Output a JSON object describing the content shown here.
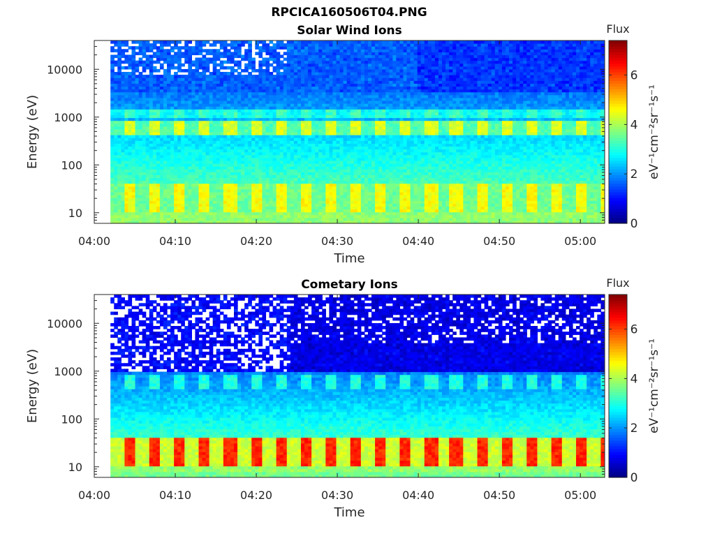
{
  "figure": {
    "file_title": "RPCICA160506T04.PNG"
  },
  "chart_data": [
    {
      "type": "heatmap",
      "title": "Solar Wind Ions",
      "xlabel": "Time",
      "ylabel": "Energy (eV)",
      "x_ticks": [
        "04:00",
        "04:10",
        "04:20",
        "04:30",
        "04:40",
        "04:50",
        "05:00"
      ],
      "y_ticks": [
        "10",
        "100",
        "1000",
        "10000"
      ],
      "y_scale": "log",
      "ylim": [
        6,
        40000
      ],
      "xlim": [
        "04:00",
        "05:03"
      ],
      "data_start": "04:02",
      "colorbar": {
        "title": "Flux",
        "label": "eV⁻¹cm⁻²sr⁻¹s⁻¹",
        "ticks": [
          "0",
          "2",
          "4",
          "6"
        ],
        "range": [
          0,
          7.4
        ],
        "colormap": "jet"
      },
      "features": {
        "sweep_period_min": 3.1,
        "band_low_energy_eV": [
          10,
          40
        ],
        "band_low_value": 4.6,
        "band_mid_energy_eV": 600,
        "band_mid_value": 4.4,
        "band_upper_energy_eV": 1200,
        "band_upper_value": 3.4,
        "background_high_energy_value": 1.4
      }
    },
    {
      "type": "heatmap",
      "title": "Cometary Ions",
      "xlabel": "Time",
      "ylabel": "Energy (eV)",
      "x_ticks": [
        "04:00",
        "04:10",
        "04:20",
        "04:30",
        "04:40",
        "04:50",
        "05:00"
      ],
      "y_ticks": [
        "10",
        "100",
        "1000",
        "10000"
      ],
      "y_scale": "log",
      "ylim": [
        6,
        40000
      ],
      "xlim": [
        "04:00",
        "05:03"
      ],
      "data_start": "04:02",
      "colorbar": {
        "title": "Flux",
        "label": "eV⁻¹cm⁻²sr⁻¹s⁻¹",
        "ticks": [
          "0",
          "2",
          "4",
          "6"
        ],
        "range": [
          0,
          7.4
        ],
        "colormap": "jet"
      },
      "features": {
        "sweep_period_min": 3.1,
        "band_low_energy_eV": [
          10,
          40
        ],
        "band_low_value": 6.2,
        "band_mid_energy_eV": 600,
        "band_mid_value": 3.0,
        "background_high_energy_value": 0.8
      }
    }
  ]
}
